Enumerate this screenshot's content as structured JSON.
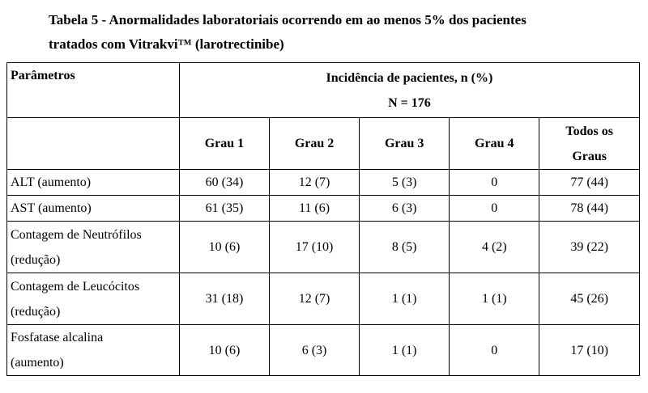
{
  "caption": {
    "line1": "Tabela 5 - Anormalidades laboratoriais ocorrendo em ao menos 5% dos pacientes",
    "line2": "tratados com Vitrakvi™ (larotrectinibe)"
  },
  "table": {
    "param_header": "Parâmetros",
    "incidence_header": "Incidência de pacientes, n (%)",
    "n_label": "N = 176",
    "grades": [
      "Grau 1",
      "Grau 2",
      "Grau 3",
      "Grau 4"
    ],
    "all_grades": [
      "Todos os",
      "Graus"
    ],
    "rows": [
      {
        "param": [
          "ALT (aumento)"
        ],
        "values": [
          "60 (34)",
          "12 (7)",
          "5 (3)",
          "0",
          "77 (44)"
        ]
      },
      {
        "param": [
          "AST (aumento)"
        ],
        "values": [
          "61 (35)",
          "11 (6)",
          "6 (3)",
          "0",
          "78 (44)"
        ]
      },
      {
        "param": [
          "Contagem de Neutrófilos",
          "(redução)"
        ],
        "values": [
          "10 (6)",
          "17 (10)",
          "8 (5)",
          "4 (2)",
          "39 (22)"
        ]
      },
      {
        "param": [
          "Contagem de Leucócitos",
          "(redução)"
        ],
        "values": [
          "31 (18)",
          "12 (7)",
          "1 (1)",
          "1 (1)",
          "45 (26)"
        ]
      },
      {
        "param": [
          "Fosfatase alcalina",
          "(aumento)"
        ],
        "values": [
          "10 (6)",
          "6 (3)",
          "1 (1)",
          "0",
          "17 (10)"
        ]
      }
    ]
  }
}
